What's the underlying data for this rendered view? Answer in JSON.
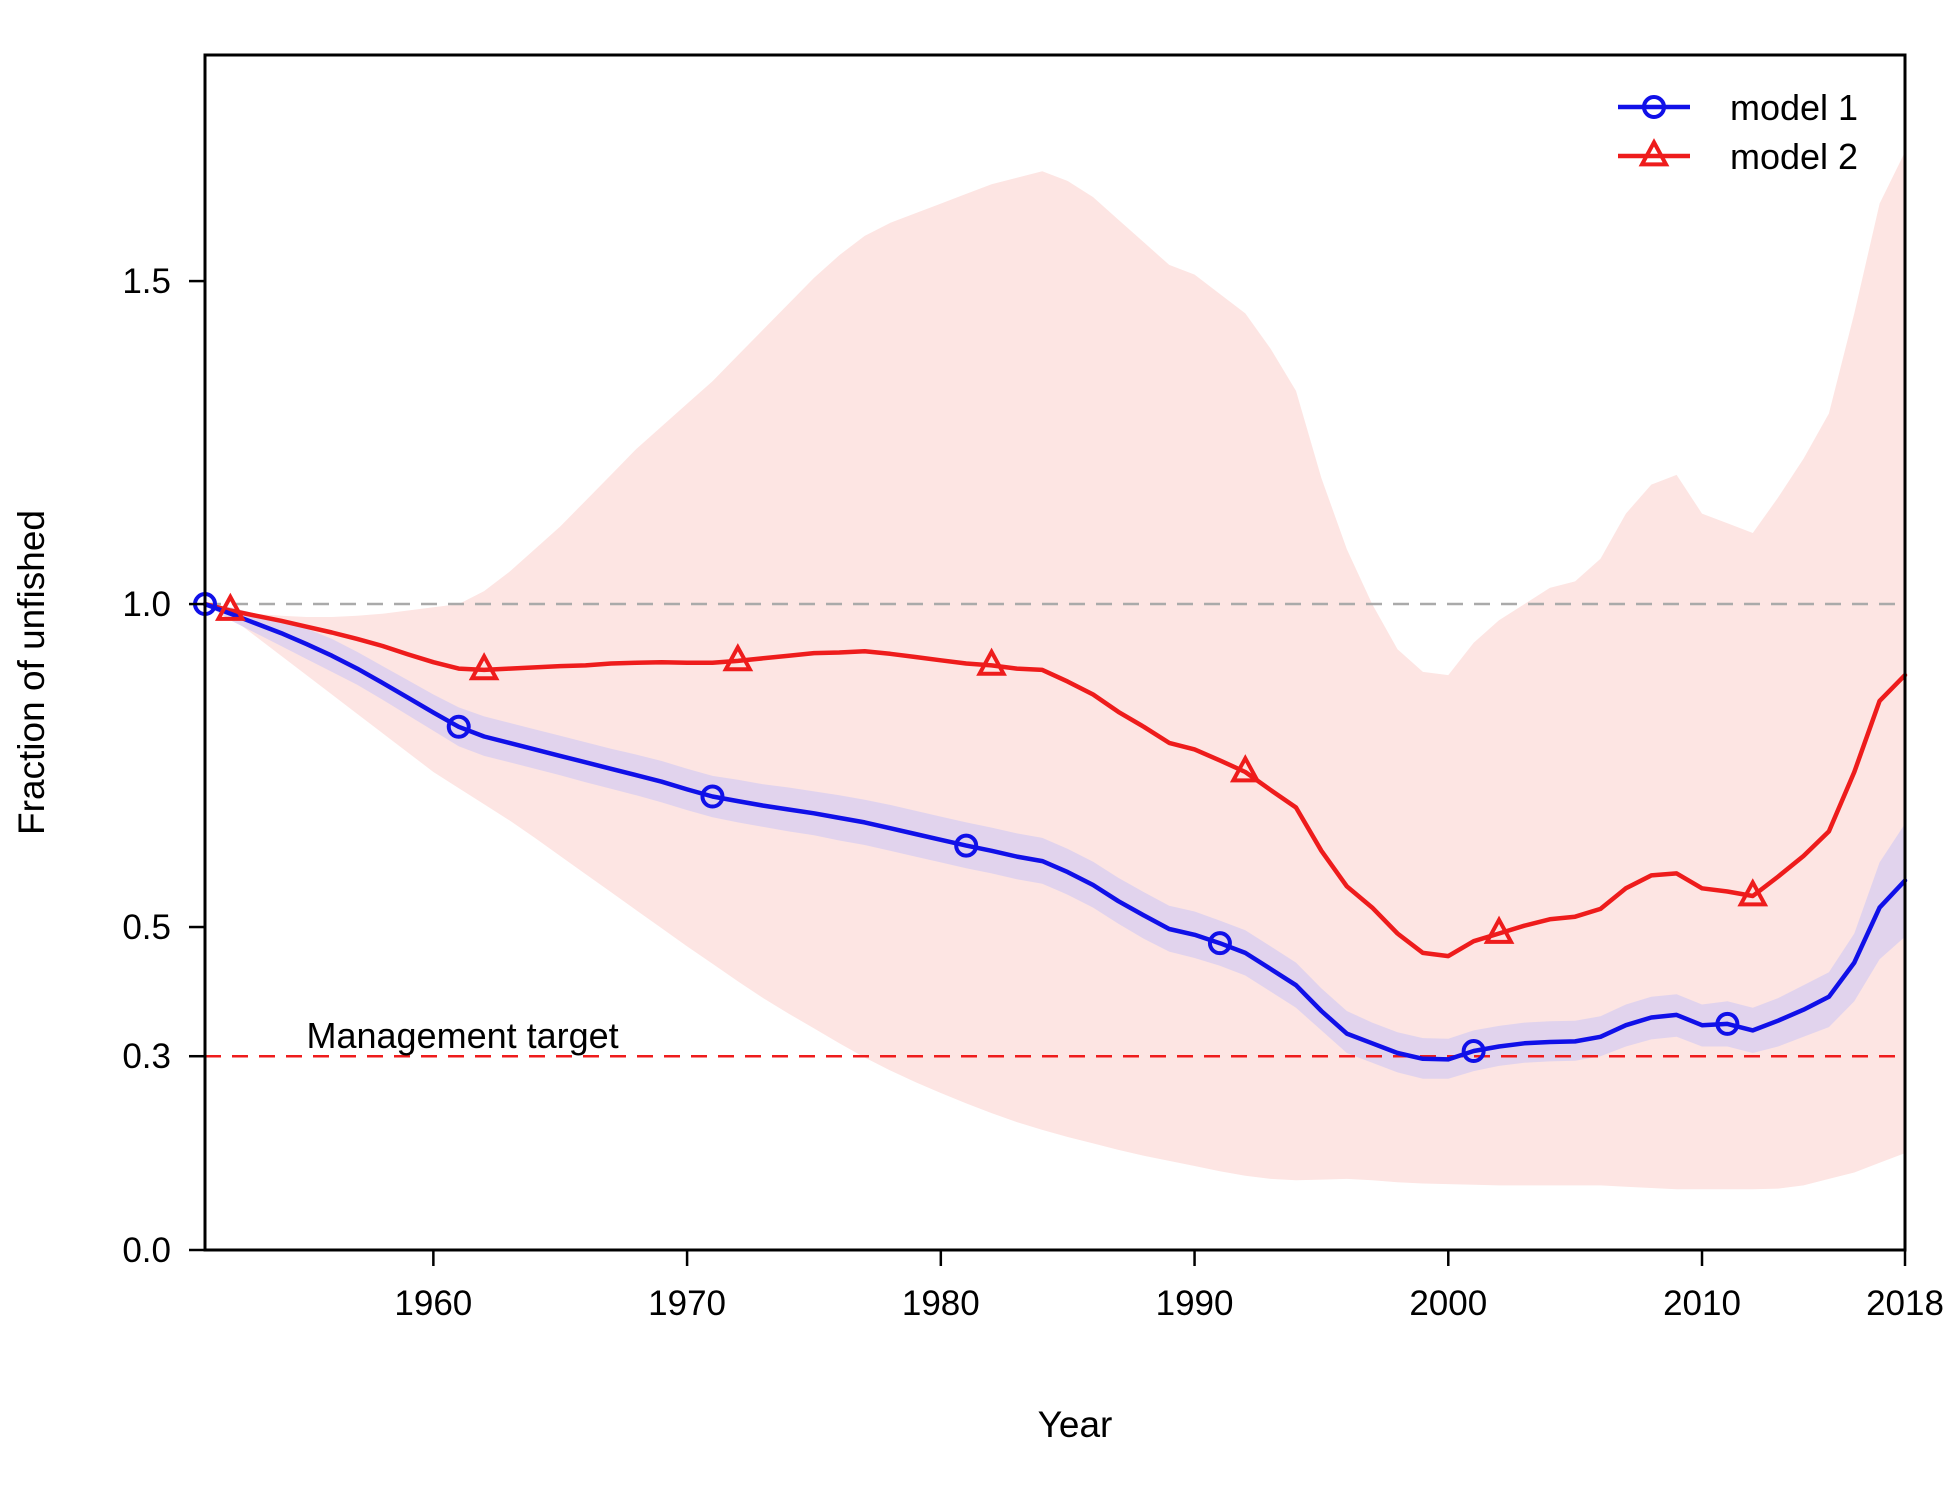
{
  "chart_data": {
    "type": "line",
    "xlabel": "Year",
    "ylabel": "Fraction of unfished",
    "xlim": [
      1951,
      2018
    ],
    "ylim": [
      0,
      1.85
    ],
    "x_ticks": [
      1960,
      1970,
      1980,
      1990,
      2000,
      2010,
      2018
    ],
    "y_ticks": [
      0.0,
      0.3,
      0.5,
      1.0,
      1.5
    ],
    "y_tick_labels": [
      "0.0",
      "0.3",
      "0.5",
      "1.0",
      "1.5"
    ],
    "grid": false,
    "legend_position": "top-right",
    "reference_lines": [
      {
        "y": 1.0,
        "style": "dashed",
        "color": "#aaaaaa",
        "label": ""
      },
      {
        "y": 0.3,
        "style": "dashed",
        "color": "#ee1c1c",
        "label": "Management target"
      }
    ],
    "series": [
      {
        "name": "model 1",
        "color": "#1010e8",
        "marker": "circle",
        "marker_years": [
          1951,
          1961,
          1971,
          1981,
          1991,
          2001,
          2011
        ],
        "band_color": "#dcd0ee",
        "x": [
          1951,
          1952,
          1953,
          1954,
          1955,
          1956,
          1957,
          1958,
          1959,
          1960,
          1961,
          1962,
          1963,
          1964,
          1965,
          1966,
          1967,
          1968,
          1969,
          1970,
          1971,
          1972,
          1973,
          1974,
          1975,
          1976,
          1977,
          1978,
          1979,
          1980,
          1981,
          1982,
          1983,
          1984,
          1985,
          1986,
          1987,
          1988,
          1989,
          1990,
          1991,
          1992,
          1993,
          1994,
          1995,
          1996,
          1997,
          1998,
          1999,
          2000,
          2001,
          2002,
          2003,
          2004,
          2005,
          2006,
          2007,
          2008,
          2009,
          2010,
          2011,
          2012,
          2013,
          2014,
          2015,
          2016,
          2017,
          2018
        ],
        "y": [
          1.0,
          0.985,
          0.97,
          0.955,
          0.938,
          0.92,
          0.9,
          0.878,
          0.855,
          0.832,
          0.81,
          0.795,
          0.785,
          0.775,
          0.765,
          0.755,
          0.745,
          0.735,
          0.725,
          0.713,
          0.702,
          0.695,
          0.688,
          0.682,
          0.676,
          0.669,
          0.662,
          0.653,
          0.644,
          0.635,
          0.626,
          0.618,
          0.609,
          0.602,
          0.585,
          0.565,
          0.54,
          0.518,
          0.497,
          0.488,
          0.475,
          0.46,
          0.435,
          0.41,
          0.37,
          0.335,
          0.32,
          0.305,
          0.296,
          0.295,
          0.308,
          0.315,
          0.32,
          0.322,
          0.323,
          0.33,
          0.348,
          0.36,
          0.364,
          0.348,
          0.35,
          0.34,
          0.355,
          0.372,
          0.392,
          0.445,
          0.53,
          0.572
        ],
        "lower": [
          1.0,
          0.975,
          0.955,
          0.935,
          0.915,
          0.895,
          0.875,
          0.852,
          0.828,
          0.804,
          0.78,
          0.765,
          0.755,
          0.745,
          0.735,
          0.724,
          0.714,
          0.704,
          0.693,
          0.681,
          0.67,
          0.662,
          0.655,
          0.648,
          0.642,
          0.634,
          0.627,
          0.618,
          0.609,
          0.6,
          0.591,
          0.583,
          0.574,
          0.567,
          0.55,
          0.53,
          0.505,
          0.482,
          0.462,
          0.452,
          0.44,
          0.425,
          0.4,
          0.375,
          0.34,
          0.305,
          0.29,
          0.275,
          0.265,
          0.265,
          0.277,
          0.285,
          0.29,
          0.292,
          0.293,
          0.3,
          0.315,
          0.326,
          0.33,
          0.315,
          0.315,
          0.305,
          0.315,
          0.33,
          0.345,
          0.385,
          0.45,
          0.485
        ],
        "upper": [
          1.0,
          0.995,
          0.985,
          0.975,
          0.962,
          0.946,
          0.926,
          0.904,
          0.882,
          0.86,
          0.84,
          0.826,
          0.816,
          0.806,
          0.796,
          0.786,
          0.776,
          0.767,
          0.757,
          0.745,
          0.734,
          0.728,
          0.721,
          0.716,
          0.71,
          0.704,
          0.697,
          0.689,
          0.68,
          0.671,
          0.662,
          0.654,
          0.645,
          0.638,
          0.621,
          0.601,
          0.576,
          0.554,
          0.533,
          0.524,
          0.51,
          0.495,
          0.47,
          0.445,
          0.405,
          0.37,
          0.352,
          0.337,
          0.328,
          0.327,
          0.34,
          0.347,
          0.352,
          0.354,
          0.355,
          0.362,
          0.38,
          0.392,
          0.396,
          0.38,
          0.385,
          0.375,
          0.39,
          0.41,
          0.43,
          0.49,
          0.6,
          0.66
        ]
      },
      {
        "name": "model 2",
        "color": "#ee1c1c",
        "marker": "triangle",
        "marker_years": [
          1952,
          1962,
          1972,
          1982,
          1992,
          2002,
          2012
        ],
        "band_color": "#fde5e3",
        "x": [
          1951,
          1952,
          1953,
          1954,
          1955,
          1956,
          1957,
          1958,
          1959,
          1960,
          1961,
          1962,
          1963,
          1964,
          1965,
          1966,
          1967,
          1968,
          1969,
          1970,
          1971,
          1972,
          1973,
          1974,
          1975,
          1976,
          1977,
          1978,
          1979,
          1980,
          1981,
          1982,
          1983,
          1984,
          1985,
          1986,
          1987,
          1988,
          1989,
          1990,
          1991,
          1992,
          1993,
          1994,
          1995,
          1996,
          1997,
          1998,
          1999,
          2000,
          2001,
          2002,
          2003,
          2004,
          2005,
          2006,
          2007,
          2008,
          2009,
          2010,
          2011,
          2012,
          2013,
          2014,
          2015,
          2016,
          2017,
          2018
        ],
        "y": [
          1.0,
          0.99,
          0.982,
          0.974,
          0.965,
          0.956,
          0.946,
          0.935,
          0.922,
          0.91,
          0.9,
          0.898,
          0.9,
          0.902,
          0.904,
          0.905,
          0.908,
          0.909,
          0.91,
          0.909,
          0.909,
          0.912,
          0.916,
          0.92,
          0.924,
          0.925,
          0.927,
          0.923,
          0.918,
          0.913,
          0.908,
          0.905,
          0.9,
          0.898,
          0.88,
          0.86,
          0.833,
          0.81,
          0.785,
          0.775,
          0.758,
          0.74,
          0.712,
          0.685,
          0.618,
          0.563,
          0.53,
          0.49,
          0.46,
          0.455,
          0.478,
          0.49,
          0.502,
          0.512,
          0.516,
          0.528,
          0.56,
          0.58,
          0.583,
          0.56,
          0.555,
          0.548,
          0.578,
          0.61,
          0.648,
          0.74,
          0.85,
          0.89
        ],
        "lower": [
          1.0,
          0.98,
          0.95,
          0.92,
          0.89,
          0.86,
          0.83,
          0.8,
          0.77,
          0.74,
          0.715,
          0.69,
          0.665,
          0.638,
          0.61,
          0.582,
          0.554,
          0.526,
          0.498,
          0.47,
          0.443,
          0.416,
          0.39,
          0.366,
          0.343,
          0.32,
          0.298,
          0.278,
          0.26,
          0.243,
          0.227,
          0.212,
          0.198,
          0.186,
          0.175,
          0.165,
          0.155,
          0.146,
          0.138,
          0.13,
          0.122,
          0.115,
          0.11,
          0.108,
          0.109,
          0.11,
          0.108,
          0.105,
          0.103,
          0.102,
          0.101,
          0.1,
          0.1,
          0.1,
          0.1,
          0.1,
          0.098,
          0.096,
          0.094,
          0.094,
          0.094,
          0.094,
          0.095,
          0.1,
          0.11,
          0.12,
          0.135,
          0.15
        ],
        "upper": [
          1.0,
          0.99,
          0.985,
          0.982,
          0.98,
          0.98,
          0.982,
          0.985,
          0.99,
          0.995,
          1.0,
          1.02,
          1.05,
          1.085,
          1.12,
          1.16,
          1.2,
          1.24,
          1.275,
          1.31,
          1.345,
          1.385,
          1.425,
          1.465,
          1.505,
          1.54,
          1.57,
          1.59,
          1.605,
          1.62,
          1.635,
          1.65,
          1.66,
          1.67,
          1.655,
          1.63,
          1.595,
          1.56,
          1.525,
          1.51,
          1.48,
          1.45,
          1.395,
          1.33,
          1.195,
          1.085,
          1.0,
          0.93,
          0.895,
          0.89,
          0.94,
          0.975,
          1.0,
          1.025,
          1.035,
          1.07,
          1.14,
          1.185,
          1.2,
          1.14,
          1.125,
          1.11,
          1.165,
          1.225,
          1.295,
          1.45,
          1.62,
          1.7
        ]
      }
    ],
    "annotations": [
      {
        "text": "Management target",
        "x": 1955,
        "y": 0.3
      }
    ]
  }
}
